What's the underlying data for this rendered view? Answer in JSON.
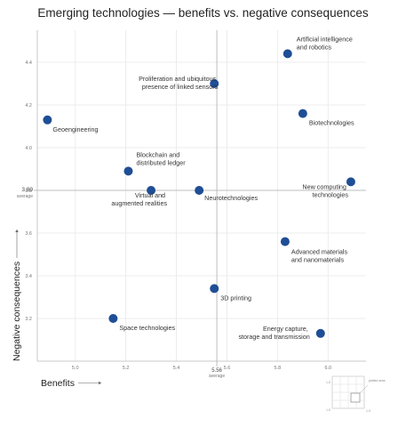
{
  "chart_data": {
    "type": "scatter",
    "title": "Emerging technologies — benefits vs. negative consequences",
    "xlabel": "Benefits",
    "ylabel": "Negative consequences",
    "xlim": [
      4.85,
      6.15
    ],
    "ylim": [
      3.0,
      4.55
    ],
    "x_ticks": [
      "5.0",
      "5.2",
      "5.4",
      "5.6",
      "5.8",
      "6.0"
    ],
    "y_ticks": [
      "3.2",
      "3.4",
      "3.6",
      "3.8",
      "4.0",
      "4.2",
      "4.4"
    ],
    "grid": true,
    "average": {
      "x": 5.56,
      "x_label": "5.56",
      "x_sublabel": "average",
      "y": 3.8,
      "y_label": "3.80",
      "y_sublabel": "average"
    },
    "points": [
      {
        "name": "Artificial intelligence and robotics",
        "x": 5.84,
        "y": 4.44
      },
      {
        "name": "Proliferation and ubiquitous presence of linked sensors",
        "x": 5.55,
        "y": 4.3
      },
      {
        "name": "Biotechnologies",
        "x": 5.9,
        "y": 4.16
      },
      {
        "name": "Geoengineering",
        "x": 4.89,
        "y": 4.13
      },
      {
        "name": "Blockchain and distributed ledger",
        "x": 5.21,
        "y": 3.89
      },
      {
        "name": "Virtual and augmented realities",
        "x": 5.3,
        "y": 3.8
      },
      {
        "name": "Neurotechnologies",
        "x": 5.49,
        "y": 3.8
      },
      {
        "name": "New computing technologies",
        "x": 6.09,
        "y": 3.84
      },
      {
        "name": "Advanced materials and nanomaterials",
        "x": 5.83,
        "y": 3.56
      },
      {
        "name": "3D printing",
        "x": 5.55,
        "y": 3.34
      },
      {
        "name": "Space technologies",
        "x": 5.15,
        "y": 3.2
      },
      {
        "name": "Energy capture, storage and transmission",
        "x": 5.97,
        "y": 3.13
      }
    ],
    "dot_color": "#1f4e96",
    "inset": {
      "label": "plotted area",
      "tick_top": "1-5",
      "tick_bottom": "1-5",
      "tick_corner": "1-5"
    }
  }
}
